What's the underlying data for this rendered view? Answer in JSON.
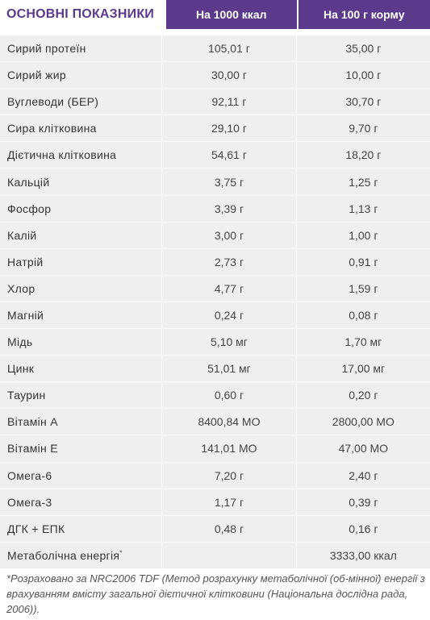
{
  "header": {
    "title": "ОСНОВНІ ПОКАЗНИКИ",
    "col1": "На 1000 ккал",
    "col2": "На 100  г корму"
  },
  "rows": [
    {
      "label": "Сирий протеїн",
      "v1": "105,01 г",
      "v2": "35,00 г"
    },
    {
      "label": "Сирий жир",
      "v1": "30,00 г",
      "v2": "10,00 г"
    },
    {
      "label": "Вуглеводи (БЕР)",
      "v1": "92,11 г",
      "v2": "30,70 г"
    },
    {
      "label": "Сира клітковина",
      "v1": "29,10 г",
      "v2": "9,70 г"
    },
    {
      "label": "Дієтична клітковина",
      "v1": "54,61 г",
      "v2": "18,20 г"
    },
    {
      "label": "Кальцій",
      "v1": "3,75 г",
      "v2": "1,25 г"
    },
    {
      "label": "Фосфор",
      "v1": "3,39 г",
      "v2": "1,13 г"
    },
    {
      "label": "Калій",
      "v1": "3,00 г",
      "v2": "1,00 г"
    },
    {
      "label": "Натрій",
      "v1": "2,73 г",
      "v2": "0,91 г"
    },
    {
      "label": "Хлор",
      "v1": "4,77 г",
      "v2": "1,59 г"
    },
    {
      "label": "Магній",
      "v1": "0,24 г",
      "v2": "0,08 г"
    },
    {
      "label": "Мідь",
      "v1": "5,10 мг",
      "v2": "1,70 мг"
    },
    {
      "label": "Цинк",
      "v1": "51,01 мг",
      "v2": "17,00 мг"
    },
    {
      "label": "Таурин",
      "v1": "0,60 г",
      "v2": "0,20 г"
    },
    {
      "label": "Вітамін А",
      "v1": "8400,84 МО",
      "v2": "2800,00 МО"
    },
    {
      "label": "Вітамін Е",
      "v1": "141,01 МО",
      "v2": "47,00 МО"
    },
    {
      "label": "Омега-6",
      "v1": "7,20 г",
      "v2": "2,40 г"
    },
    {
      "label": "Омега-3",
      "v1": "1,17 г",
      "v2": "0,39 г"
    },
    {
      "label": "ДГК + ЕПК",
      "v1": "0,48 г",
      "v2": "0,16 г"
    }
  ],
  "energy": {
    "label": "Метаболічна енергія",
    "marker": "*",
    "v1": "",
    "v2": "3333,00 ккал"
  },
  "footnote": "*Розраховано за NRC2006 TDF (Метод розрахунку метаболічної (об-мінної) енергії з врахуванням вмісту загальної дієтичної клітковини (Національна дослідна рада, 2006))."
}
